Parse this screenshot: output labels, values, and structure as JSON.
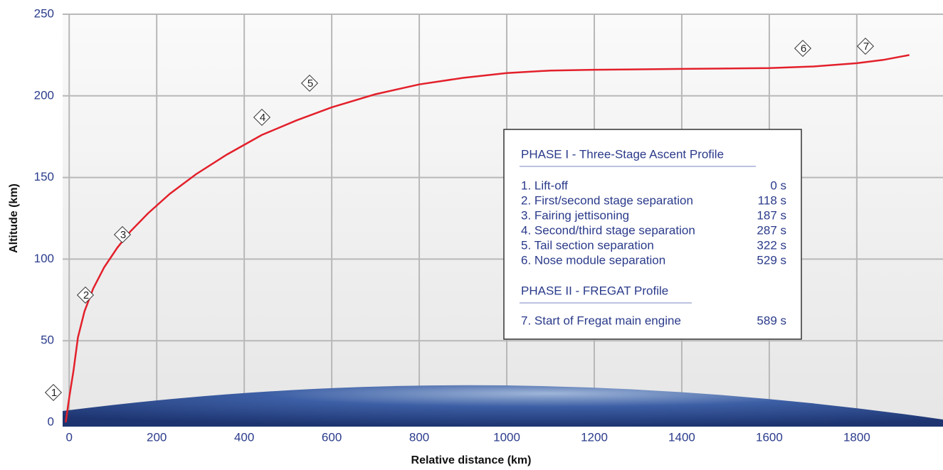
{
  "chart_data": {
    "type": "line",
    "x_label": "Relative distance (km)",
    "y_label": "Altitude (km)",
    "x": [
      -8,
      0,
      10,
      20,
      35,
      55,
      80,
      110,
      140,
      180,
      230,
      290,
      360,
      440,
      520,
      600,
      700,
      800,
      900,
      1000,
      1100,
      1200,
      1400,
      1600,
      1700,
      1800,
      1860,
      1920
    ],
    "values": [
      0,
      15,
      32,
      52,
      68,
      82,
      95,
      107,
      117,
      128,
      140,
      152,
      164,
      176,
      185,
      193,
      201,
      207,
      211,
      214,
      215.5,
      216,
      216.5,
      217,
      218,
      220,
      222,
      225
    ],
    "color": "#e3202b",
    "xlim": [
      -15,
      1997
    ],
    "ylim": [
      0,
      250
    ],
    "xticks": [
      0,
      200,
      400,
      600,
      800,
      1000,
      1200,
      1400,
      1600,
      1800
    ],
    "yticks": [
      0,
      50,
      100,
      150,
      200,
      250
    ],
    "grid": true,
    "markers": [
      "1",
      "2",
      "3",
      "4",
      "5",
      "6",
      "7"
    ]
  },
  "info_box": {
    "phase1_title": "PHASE I - Three-Stage Ascent Profile",
    "phase1_events": [
      {
        "label": "1. Lift-off",
        "time": "0 s"
      },
      {
        "label": "2. First/second stage separation",
        "time": "118 s"
      },
      {
        "label": "3. Fairing jettisoning",
        "time": "187 s"
      },
      {
        "label": "4. Second/third stage separation",
        "time": "287 s"
      },
      {
        "label": "5. Tail section separation",
        "time": "322 s"
      },
      {
        "label": "6. Nose module separation",
        "time": "529 s"
      }
    ],
    "phase2_title": "PHASE II - FREGAT Profile",
    "phase2_events": [
      {
        "label": "7. Start of Fregat main engine",
        "time": "589 s"
      }
    ]
  }
}
